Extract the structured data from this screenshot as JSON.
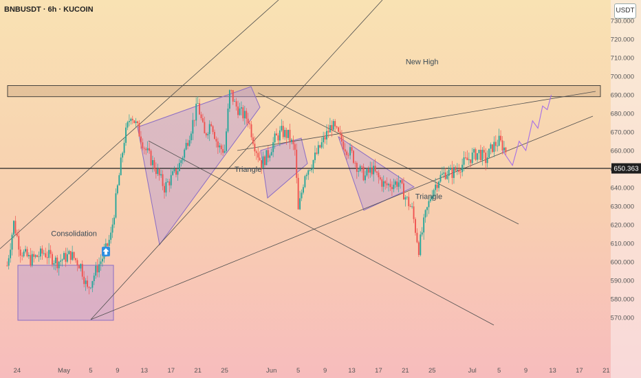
{
  "header": {
    "title": "BNBUSDT · 6h · KUCOIN",
    "currency": "USDT"
  },
  "chart_data": {
    "type": "candlestick",
    "symbol": "BNBUSDT",
    "timeframe": "6h",
    "exchange": "KUCOIN",
    "ylim": [
      565,
      735
    ],
    "y_ticks": [
      570,
      580,
      590,
      600,
      610,
      620,
      630,
      640,
      650,
      660,
      670,
      680,
      690,
      700,
      710,
      720,
      730
    ],
    "y_tick_labels": [
      "570.000",
      "580.000",
      "590.000",
      "600.000",
      "610.000",
      "620.000",
      "630.000",
      "640.000",
      "650.000",
      "660.000",
      "670.000",
      "680.000",
      "690.000",
      "700.000",
      "710.000",
      "720.000",
      "730.000"
    ],
    "x_ticks": [
      {
        "label": "24",
        "day": -7
      },
      {
        "label": "May",
        "day": 0
      },
      {
        "label": "5",
        "day": 4
      },
      {
        "label": "9",
        "day": 8
      },
      {
        "label": "13",
        "day": 12
      },
      {
        "label": "17",
        "day": 16
      },
      {
        "label": "21",
        "day": 20
      },
      {
        "label": "25",
        "day": 24
      },
      {
        "label": "Jun",
        "day": 31
      },
      {
        "label": "5",
        "day": 35
      },
      {
        "label": "9",
        "day": 39
      },
      {
        "label": "13",
        "day": 43
      },
      {
        "label": "17",
        "day": 47
      },
      {
        "label": "21",
        "day": 51
      },
      {
        "label": "25",
        "day": 55
      },
      {
        "label": "Jul",
        "day": 61
      },
      {
        "label": "5",
        "day": 65
      },
      {
        "label": "9",
        "day": 69
      },
      {
        "label": "13",
        "day": 73
      },
      {
        "label": "17",
        "day": 77
      },
      {
        "label": "21",
        "day": 81
      }
    ],
    "current_price": 650.363,
    "current_price_label": "650.363",
    "resistance_zone": [
      689,
      695
    ],
    "price_path": [
      [
        -8.5,
        598
      ],
      [
        -7.5,
        621
      ],
      [
        -6.5,
        606
      ],
      [
        -5,
        601
      ],
      [
        -3,
        605
      ],
      [
        -1,
        600
      ],
      [
        1,
        604
      ],
      [
        2.5,
        598
      ],
      [
        3.5,
        585
      ],
      [
        5,
        597
      ],
      [
        6,
        604
      ],
      [
        7,
        614
      ],
      [
        8,
        640
      ],
      [
        9,
        666
      ],
      [
        10,
        680
      ],
      [
        11,
        672
      ],
      [
        12,
        662
      ],
      [
        13,
        655
      ],
      [
        14,
        648
      ],
      [
        15,
        640
      ],
      [
        16,
        645
      ],
      [
        17,
        650
      ],
      [
        18,
        660
      ],
      [
        19,
        672
      ],
      [
        20,
        685
      ],
      [
        21,
        668
      ],
      [
        22,
        676
      ],
      [
        23,
        662
      ],
      [
        24,
        660
      ],
      [
        24.8,
        693
      ],
      [
        25.5,
        685
      ],
      [
        26.5,
        680
      ],
      [
        27.5,
        677
      ],
      [
        28.5,
        663
      ],
      [
        29.5,
        653
      ],
      [
        30.5,
        658
      ],
      [
        31.5,
        666
      ],
      [
        32.5,
        670
      ],
      [
        33.5,
        668
      ],
      [
        34.5,
        660
      ],
      [
        35,
        627
      ],
      [
        36,
        648
      ],
      [
        37,
        653
      ],
      [
        38,
        660
      ],
      [
        39,
        667
      ],
      [
        40,
        674
      ],
      [
        41,
        668
      ],
      [
        42,
        662
      ],
      [
        43,
        658
      ],
      [
        44,
        650
      ],
      [
        45,
        646
      ],
      [
        46,
        650
      ],
      [
        47,
        645
      ],
      [
        48,
        641
      ],
      [
        49,
        642
      ],
      [
        50,
        643
      ],
      [
        51,
        635
      ],
      [
        52,
        628
      ],
      [
        53,
        607
      ],
      [
        54,
        625
      ],
      [
        55,
        638
      ],
      [
        56,
        645
      ],
      [
        57,
        648
      ],
      [
        58,
        648
      ],
      [
        59,
        651
      ],
      [
        60,
        654
      ],
      [
        61,
        657
      ],
      [
        62,
        659
      ],
      [
        63,
        655
      ],
      [
        64,
        662
      ],
      [
        65,
        665
      ],
      [
        66,
        660
      ]
    ],
    "projection_path": [
      [
        65.5,
        660
      ],
      [
        67,
        652
      ],
      [
        68,
        665
      ],
      [
        69,
        660
      ],
      [
        70,
        676
      ],
      [
        70.8,
        672
      ],
      [
        71.5,
        684
      ],
      [
        72.2,
        682
      ],
      [
        72.8,
        690
      ]
    ],
    "annotations": [
      {
        "text": "Consolidation",
        "day": 1.5,
        "price": 613.8
      },
      {
        "text": "Triangle",
        "day": 27.5,
        "price": 648.5
      },
      {
        "text": "Triangle",
        "day": 54.5,
        "price": 633.8
      },
      {
        "text": "New High",
        "day": 53.5,
        "price": 706.5
      }
    ]
  }
}
